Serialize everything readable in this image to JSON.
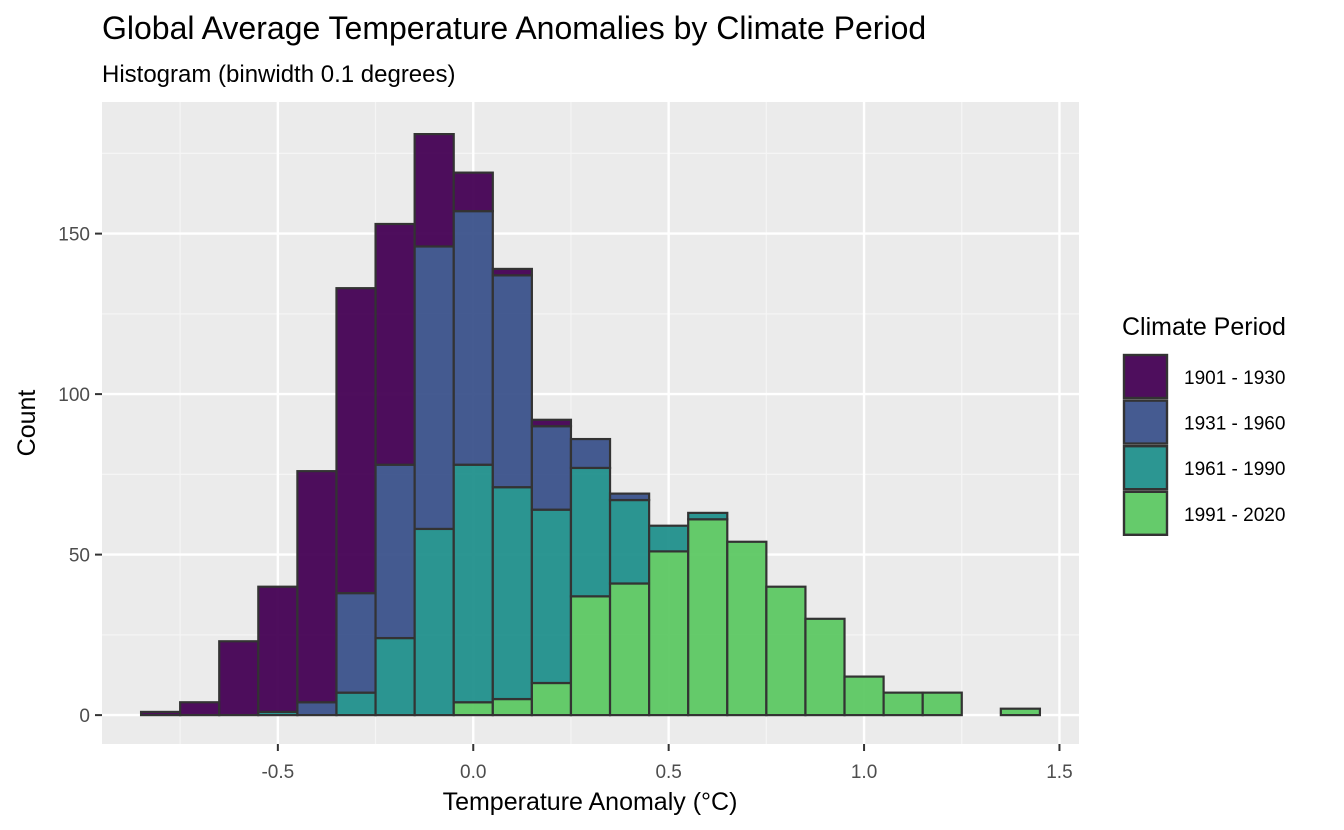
{
  "chart_data": {
    "type": "histogram-stacked",
    "title": "Global Average Temperature Anomalies by Climate Period",
    "subtitle": "Histogram (binwidth 0.1 degrees)",
    "xlabel": "Temperature Anomaly (°C)",
    "ylabel": "Count",
    "binwidth": 0.1,
    "xlim": [
      -0.95,
      1.55
    ],
    "ylim": [
      -9,
      191
    ],
    "x_ticks": [
      -0.5,
      0.0,
      0.5,
      1.0,
      1.5
    ],
    "x_tick_labels": [
      "-0.5",
      "0.0",
      "0.5",
      "1.0",
      "1.5"
    ],
    "y_ticks": [
      0,
      50,
      100,
      150
    ],
    "y_tick_labels": [
      "0",
      "50",
      "100",
      "150"
    ],
    "bin_centers": [
      -0.8,
      -0.7,
      -0.6,
      -0.5,
      -0.4,
      -0.3,
      -0.2,
      -0.1,
      0.0,
      0.1,
      0.2,
      0.3,
      0.4,
      0.5,
      0.6,
      0.7,
      0.8,
      0.9,
      1.0,
      1.1,
      1.2,
      1.3,
      1.4
    ],
    "legend": {
      "title": "Climate Period",
      "position": "right"
    },
    "series": [
      {
        "name": "1901 - 1930",
        "color": "#440154",
        "values": [
          1,
          4,
          23,
          39,
          72,
          95,
          75,
          35,
          12,
          2,
          2,
          0,
          0,
          0,
          0,
          0,
          0,
          0,
          0,
          0,
          0,
          0,
          0
        ]
      },
      {
        "name": "1931 - 1960",
        "color": "#3B528B",
        "values": [
          0,
          0,
          0,
          0,
          4,
          31,
          54,
          88,
          79,
          66,
          26,
          9,
          2,
          0,
          0,
          0,
          0,
          0,
          0,
          0,
          0,
          0,
          0
        ]
      },
      {
        "name": "1961 - 1990",
        "color": "#21908C",
        "values": [
          0,
          0,
          0,
          1,
          0,
          7,
          24,
          58,
          74,
          66,
          54,
          40,
          26,
          8,
          2,
          0,
          0,
          0,
          0,
          0,
          0,
          0,
          0
        ]
      },
      {
        "name": "1991 - 2020",
        "color": "#5DC863",
        "values": [
          0,
          0,
          0,
          0,
          0,
          0,
          0,
          0,
          4,
          5,
          10,
          37,
          41,
          51,
          61,
          54,
          40,
          30,
          12,
          7,
          7,
          0,
          2
        ]
      }
    ]
  }
}
